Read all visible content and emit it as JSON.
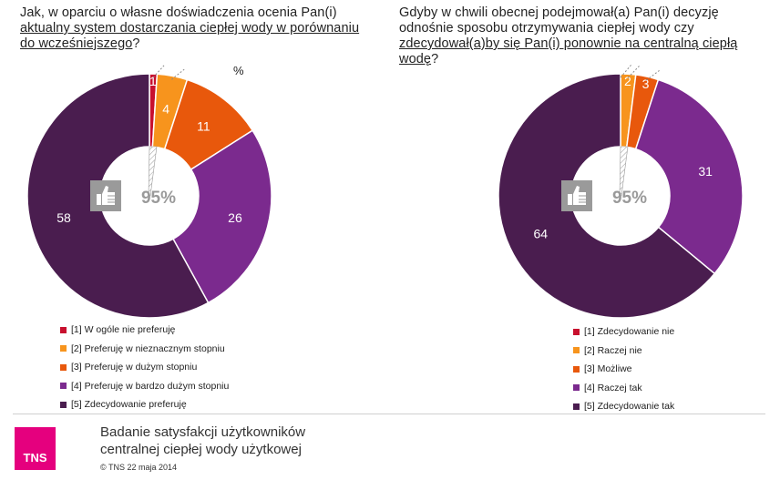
{
  "questions": [
    {
      "title_plain": "Jak, w oparciu o własne doświadczenia ocenia Pan(i)",
      "title_underlined": "aktualny system dostarczania ciepłej wody  w porównaniu do wcześniejszego",
      "title_end": "?"
    },
    {
      "title_plain": "Gdyby w chwili obecnej podejmował(a) Pan(i) decyzję odnośnie sposobu otrzymywania ciepłej wody czy",
      "title_underlined": "zdecydował(a)by się Pan(i) ponownie na centralną ciepłą wodę",
      "title_end": "?"
    }
  ],
  "unit_label": "%",
  "chart_data": [
    {
      "type": "pie",
      "variant": "donut",
      "center_label": "95%",
      "center_icon": "thumbs-up-icon",
      "categories": [
        "[1] W ogóle nie preferuję",
        "[2] Preferuję w nieznacznym stopniu",
        "[3] Preferuję w dużym stopniu",
        "[4] Preferuję w bardzo dużym stopniu",
        "[5] Zdecydowanie preferuję"
      ],
      "values": [
        1,
        4,
        11,
        26,
        58
      ],
      "colors": [
        "#c8102e",
        "#f7941d",
        "#e8580c",
        "#7b2a8e",
        "#4a1d4f"
      ],
      "legend_position": "bottom"
    },
    {
      "type": "pie",
      "variant": "donut",
      "center_label": "95%",
      "center_icon": "thumbs-up-icon",
      "categories": [
        "[1] Zdecydowanie nie",
        "[2] Raczej nie",
        "[3] Możliwe",
        "[4] Raczej tak",
        "[5] Zdecydowanie tak"
      ],
      "values": [
        0,
        2,
        3,
        31,
        64
      ],
      "colors": [
        "#c8102e",
        "#f7941d",
        "#e8580c",
        "#7b2a8e",
        "#4a1d4f"
      ],
      "legend_position": "bottom"
    }
  ],
  "footer": {
    "logo": "TNS",
    "title_line1": "Badanie satysfakcji użytkowników",
    "title_line2": "centralnej ciepłej wody użytkowej",
    "copyright": "© TNS 22 maja 2014"
  }
}
